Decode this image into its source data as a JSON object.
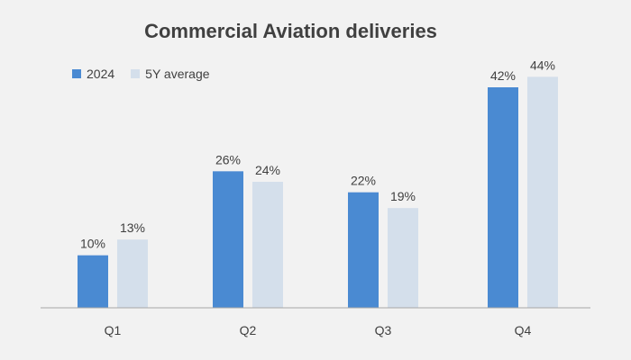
{
  "chart_data": {
    "type": "bar",
    "title": "Commercial Aviation deliveries",
    "categories": [
      "Q1",
      "Q2",
      "Q3",
      "Q4"
    ],
    "series": [
      {
        "name": "2024",
        "values": [
          10,
          26,
          22,
          42
        ],
        "labels": [
          "10%",
          "26%",
          "22%",
          "42%"
        ],
        "color": "#4a8ad2"
      },
      {
        "name": "5Y average",
        "values": [
          13,
          24,
          19,
          44
        ],
        "labels": [
          "13%",
          "24%",
          "19%",
          "44%"
        ],
        "color": "#d4dfeb"
      }
    ],
    "xlabel": "",
    "ylabel": "",
    "ylim": [
      0,
      50
    ],
    "legend": "top-left",
    "grid": false
  },
  "colors": {
    "axis": "#a6a6a6",
    "text": "#404040",
    "background": "#f2f2f2"
  }
}
